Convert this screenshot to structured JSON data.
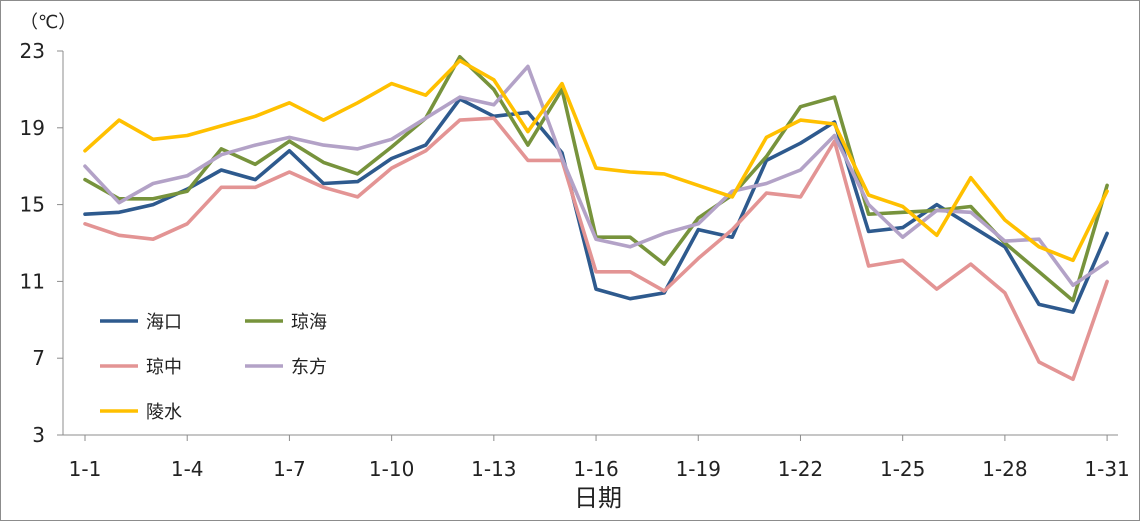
{
  "chart_data": {
    "type": "line",
    "title": "",
    "unit_label": "（℃）",
    "xlabel": "日期",
    "ylabel": "",
    "ylim": [
      3,
      23
    ],
    "yticks": [
      3,
      7,
      11,
      15,
      19,
      23
    ],
    "x": [
      "1-1",
      "1-2",
      "1-3",
      "1-4",
      "1-5",
      "1-6",
      "1-7",
      "1-8",
      "1-9",
      "1-10",
      "1-11",
      "1-12",
      "1-13",
      "1-14",
      "1-15",
      "1-16",
      "1-17",
      "1-18",
      "1-19",
      "1-20",
      "1-21",
      "1-22",
      "1-23",
      "1-24",
      "1-25",
      "1-26",
      "1-27",
      "1-28",
      "1-29",
      "1-30",
      "1-31"
    ],
    "xticks_shown": [
      "1-1",
      "1-4",
      "1-7",
      "1-10",
      "1-13",
      "1-16",
      "1-19",
      "1-22",
      "1-25",
      "1-28",
      "1-31"
    ],
    "grid": false,
    "legend_position": "left-bottom inside",
    "series": [
      {
        "name": "海口",
        "color": "#2e5a8e",
        "values": [
          14.5,
          14.6,
          15.0,
          15.8,
          16.8,
          16.3,
          17.8,
          16.1,
          16.2,
          17.4,
          18.1,
          20.5,
          19.6,
          19.8,
          17.7,
          10.6,
          10.1,
          10.4,
          13.7,
          13.3,
          17.3,
          18.2,
          19.3,
          13.6,
          13.8,
          15.0,
          13.9,
          12.8,
          9.8,
          9.4,
          13.5
        ]
      },
      {
        "name": "琼海",
        "color": "#77933c",
        "values": [
          16.3,
          15.3,
          15.3,
          15.7,
          17.9,
          17.1,
          18.3,
          17.2,
          16.6,
          18.0,
          19.5,
          22.7,
          21.0,
          18.1,
          21.0,
          13.3,
          13.3,
          11.9,
          14.3,
          15.5,
          17.5,
          20.1,
          20.6,
          14.5,
          14.6,
          14.7,
          14.9,
          13.0,
          11.5,
          10.0,
          16.0
        ]
      },
      {
        "name": "琼中",
        "color": "#e39494",
        "values": [
          14.0,
          13.4,
          13.2,
          14.0,
          15.9,
          15.9,
          16.7,
          15.9,
          15.4,
          16.9,
          17.8,
          19.4,
          19.5,
          17.3,
          17.3,
          11.5,
          11.5,
          10.5,
          12.2,
          13.7,
          15.6,
          15.4,
          18.3,
          11.8,
          12.1,
          10.6,
          11.9,
          10.4,
          6.8,
          5.9,
          11.0
        ]
      },
      {
        "name": "东方",
        "color": "#b3a2c7",
        "values": [
          17.0,
          15.1,
          16.1,
          16.5,
          17.6,
          18.1,
          18.5,
          18.1,
          17.9,
          18.4,
          19.5,
          20.6,
          20.2,
          22.2,
          17.4,
          13.2,
          12.8,
          13.5,
          14.0,
          15.7,
          16.1,
          16.8,
          18.6,
          15.0,
          13.3,
          14.7,
          14.6,
          13.1,
          13.2,
          10.8,
          12.0
        ]
      },
      {
        "name": "陵水",
        "color": "#ffc000",
        "values": [
          17.8,
          19.4,
          18.4,
          18.6,
          19.1,
          19.6,
          20.3,
          19.4,
          20.3,
          21.3,
          20.7,
          22.5,
          21.5,
          18.8,
          21.3,
          16.9,
          16.7,
          16.6,
          16.0,
          15.4,
          18.5,
          19.4,
          19.2,
          15.5,
          14.9,
          13.4,
          16.4,
          14.2,
          12.8,
          12.1,
          15.7
        ]
      }
    ]
  }
}
